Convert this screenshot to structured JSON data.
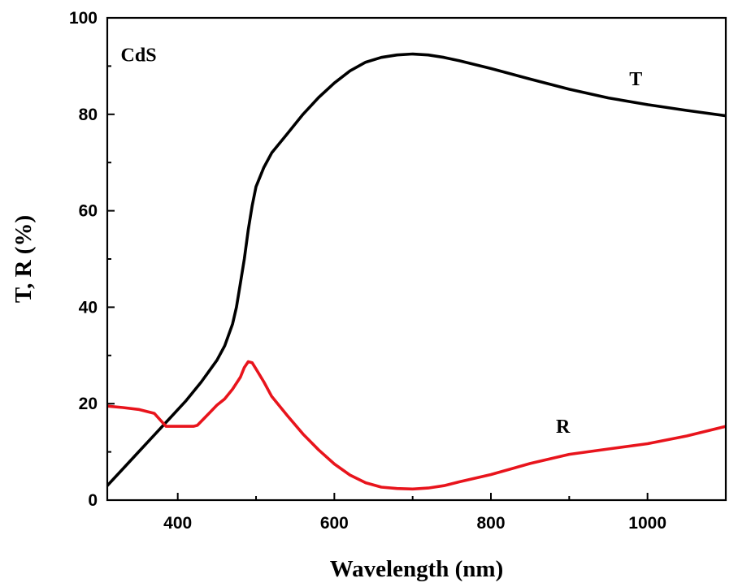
{
  "chart_data": {
    "type": "line",
    "title": "",
    "xlabel": "Wavelength (nm)",
    "ylabel": "T, R (%)",
    "xlim": [
      310,
      1100
    ],
    "ylim": [
      0,
      100
    ],
    "x_ticks": [
      400,
      600,
      800,
      1000
    ],
    "y_ticks": [
      0,
      20,
      40,
      60,
      80,
      100
    ],
    "grid": false,
    "annotations": [
      {
        "text": "CdS",
        "x": 350,
        "y": 91
      },
      {
        "text": "T",
        "x": 985,
        "y": 86
      },
      {
        "text": "R",
        "x": 892,
        "y": 14
      }
    ],
    "series": [
      {
        "name": "T",
        "color": "#000000",
        "x": [
          310,
          330,
          350,
          370,
          390,
          410,
          430,
          450,
          460,
          470,
          475,
          480,
          485,
          490,
          495,
          500,
          510,
          520,
          540,
          560,
          580,
          600,
          620,
          640,
          660,
          680,
          700,
          720,
          740,
          760,
          780,
          800,
          850,
          900,
          950,
          1000,
          1050,
          1100
        ],
        "y": [
          3,
          6.5,
          10,
          13.5,
          17,
          20.5,
          24.5,
          29,
          32,
          36.5,
          40,
          45,
          50,
          56,
          61,
          65,
          69,
          72,
          76,
          80,
          83.5,
          86.5,
          89,
          90.8,
          91.8,
          92.3,
          92.5,
          92.3,
          91.8,
          91.1,
          90.3,
          89.5,
          87.3,
          85.2,
          83.4,
          82,
          80.8,
          79.7
        ]
      },
      {
        "name": "R",
        "color": "#e8141c",
        "x": [
          310,
          330,
          350,
          370,
          385,
          400,
          420,
          425,
          440,
          450,
          460,
          470,
          480,
          485,
          490,
          495,
          500,
          510,
          520,
          540,
          560,
          580,
          600,
          620,
          640,
          660,
          680,
          700,
          720,
          740,
          760,
          800,
          850,
          900,
          950,
          1000,
          1050,
          1100
        ],
        "y": [
          19.5,
          19.2,
          18.8,
          18,
          15.3,
          15.3,
          15.3,
          15.5,
          18,
          19.7,
          21,
          23,
          25.5,
          27.5,
          28.7,
          28.5,
          27.2,
          24.5,
          21.5,
          17.5,
          13.7,
          10.4,
          7.5,
          5.2,
          3.6,
          2.7,
          2.4,
          2.3,
          2.5,
          3,
          3.8,
          5.3,
          7.6,
          9.5,
          10.6,
          11.7,
          13.3,
          15.3
        ]
      }
    ]
  }
}
